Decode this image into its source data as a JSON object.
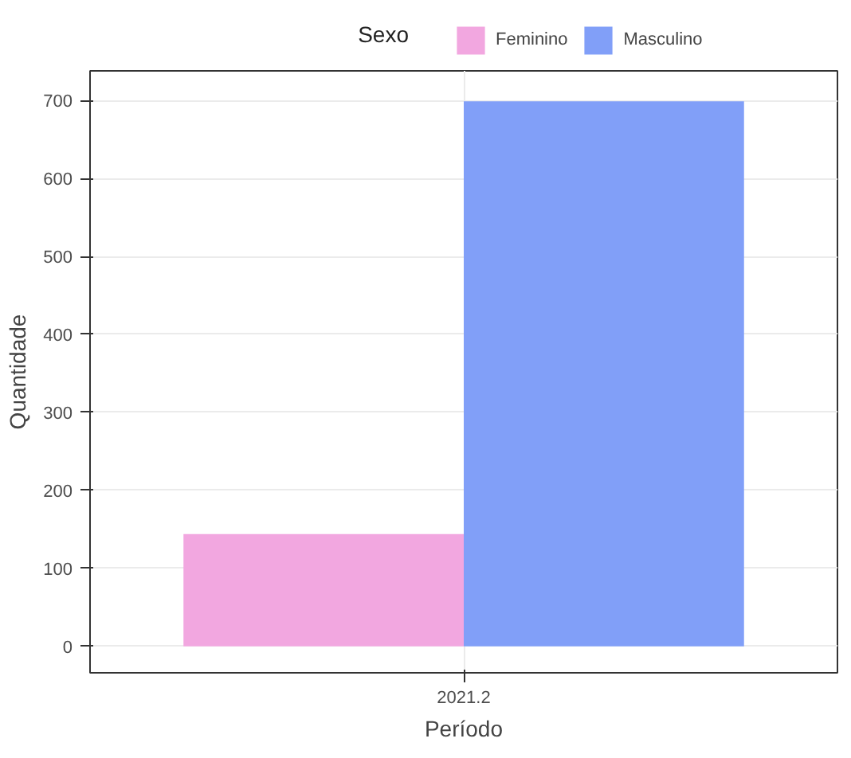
{
  "chart_data": {
    "type": "bar",
    "xlabel": "Período",
    "ylabel": "Quantidade",
    "legend_title": "Sexo",
    "categories": [
      "2021.2"
    ],
    "series": [
      {
        "name": "Feminino",
        "color": "#f2a7e0",
        "values": [
          144
        ]
      },
      {
        "name": "Masculino",
        "color": "#819ff8",
        "values": [
          699
        ]
      }
    ],
    "ylim": [
      -34,
      738
    ],
    "yticks": [
      0,
      100,
      200,
      300,
      400,
      500,
      600,
      700
    ],
    "grid": true,
    "legend": "top"
  }
}
